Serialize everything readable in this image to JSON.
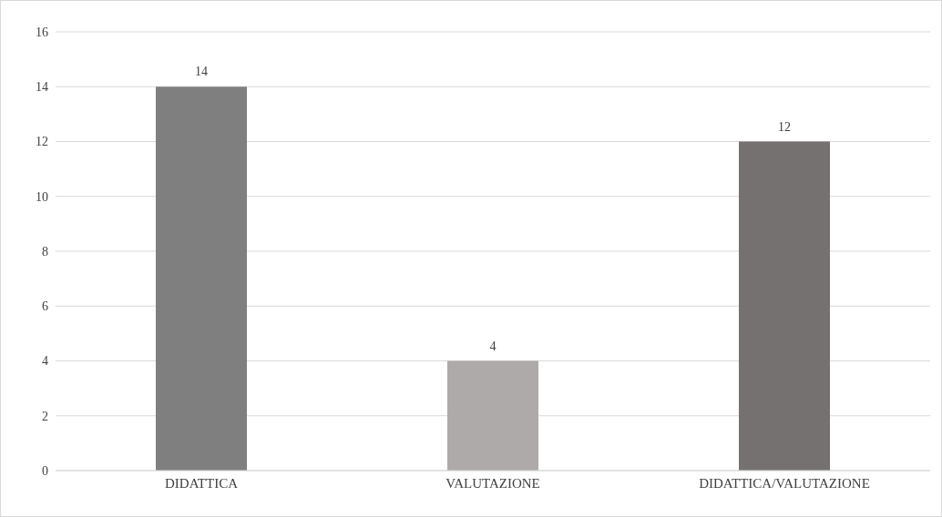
{
  "chart_data": {
    "type": "bar",
    "categories": [
      "DIDATTICA",
      "VALUTAZIONE",
      "DIDATTICA/VALUTAZIONE"
    ],
    "values": [
      14,
      4,
      12
    ],
    "colors": [
      "#7f7f7f",
      "#aeaaaa",
      "#767171"
    ],
    "ylim": [
      0,
      16
    ],
    "yticks": [
      0,
      2,
      4,
      6,
      8,
      10,
      12,
      14,
      16
    ],
    "grid": "y",
    "data_labels": true
  }
}
